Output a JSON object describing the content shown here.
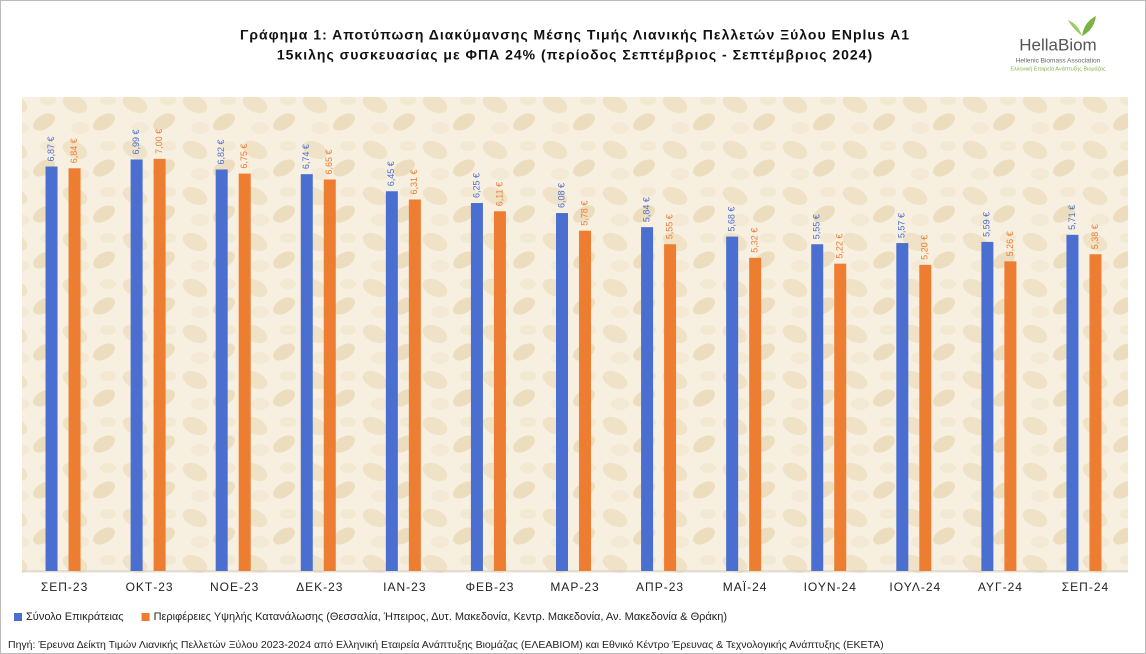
{
  "chart_data": {
    "type": "bar",
    "title": "Γράφημα 1: Αποτύπωση Διακύμανσης Μέσης Τιμής Λιανικής Πελλετών Ξύλου ENplus A1",
    "subtitle": "15κιλης συσκευασίας με ΦΠΑ 24% (περίοδος Σεπτέμβριος - Σεπτέμβριος 2024)",
    "categories": [
      "ΣΕΠ-23",
      "ΟΚΤ-23",
      "ΝΟΕ-23",
      "ΔΕΚ-23",
      "ΙΑΝ-23",
      "ΦΕΒ-23",
      "ΜΑΡ-23",
      "ΑΠΡ-23",
      "ΜΑΪ-24",
      "ΙΟΥΝ-24",
      "ΙΟΥΛ-24",
      "ΑΥΓ-24",
      "ΣΕΠ-24"
    ],
    "series": [
      {
        "name": "Σύνολο Επικράτειας",
        "color": "#4a6fd1",
        "values": [
          6.87,
          6.99,
          6.82,
          6.74,
          6.45,
          6.25,
          6.08,
          5.84,
          5.68,
          5.55,
          5.57,
          5.59,
          5.71
        ],
        "value_labels": [
          "6,87 €",
          "6,99 €",
          "6,82 €",
          "6,74 €",
          "6,45 €",
          "6,25 €",
          "6,08 €",
          "5,84 €",
          "5,68 €",
          "5,55 €",
          "5,57 €",
          "5,59 €",
          "5,71 €"
        ]
      },
      {
        "name": "Περιφέρειες Υψηλής Κατανάλωσης (Θεσσαλία, Ήπειρος, Δυτ. Μακεδονία, Κεντρ. Μακεδονία, Αν. Μακεδονία & Θράκη)",
        "color": "#ed7d31",
        "values": [
          6.84,
          7.0,
          6.75,
          6.65,
          6.31,
          6.11,
          5.78,
          5.55,
          5.32,
          5.22,
          5.2,
          5.26,
          5.38
        ],
        "value_labels": [
          "6,84 €",
          "7,00 €",
          "6,75 €",
          "6,65 €",
          "6,31 €",
          "6,11 €",
          "5,78 €",
          "5,55 €",
          "5,32 €",
          "5,22 €",
          "5,20 €",
          "5,26 €",
          "5,38 €"
        ]
      }
    ],
    "ylim": [
      0,
      8
    ],
    "legend": "bottom",
    "source": "Πηγή: Έρευνα Δείκτη Τιμών Λιανικής Πελλετών Ξύλου 2023-2024 από Ελληνική Εταιρεία Ανάπτυξης Βιομάζας (ΕΛΕΑΒΙΟΜ) και Εθνικό Κέντρο Έρευνας & Τεχνολογικής Ανάπτυξης (ΕΚΕΤΑ)"
  },
  "logo": {
    "name": "HellaBiom",
    "tagline": "Hellenic Biomass Association",
    "tagline_greek": "Ελληνική Εταιρεία Ανάπτυξης Βιομάζας"
  }
}
